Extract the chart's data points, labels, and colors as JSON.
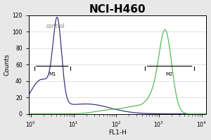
{
  "title": "NCI-H460",
  "xlabel": "FL1-H",
  "ylabel": "Counts",
  "ylim": [
    0,
    120
  ],
  "yticks": [
    0,
    20,
    40,
    60,
    80,
    100,
    120
  ],
  "control_label": "control",
  "m1_label": "M1",
  "m2_label": "M2",
  "control_color": "#2b2b7a",
  "sample_color": "#4db84d",
  "bg_color": "#e8e8e8",
  "plot_bg": "#ffffff",
  "title_fontsize": 11,
  "axis_fontsize": 6.5,
  "tick_fontsize": 5.5
}
